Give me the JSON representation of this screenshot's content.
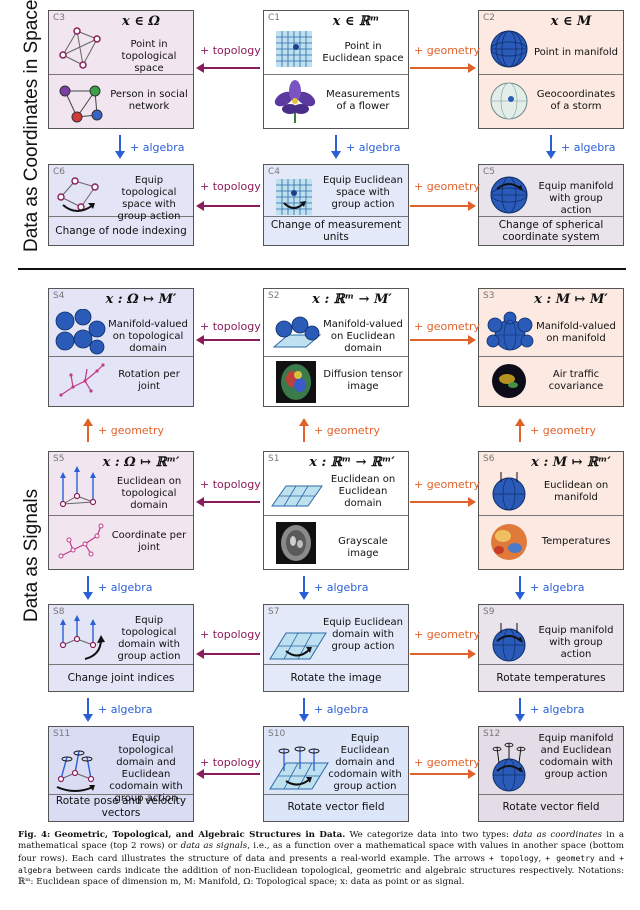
{
  "section_labels": {
    "coordinates": "Data as Coordinates in Space",
    "signals": "Data as Signals"
  },
  "arrow_labels": {
    "topology": "+ topology",
    "geometry": "+ geometry",
    "algebra": "+ algebra"
  },
  "cards": {
    "C3": {
      "id": "C3",
      "math": "x ∈ Ω",
      "desc": "Point in topological space",
      "example": "Person in social network"
    },
    "C1": {
      "id": "C1",
      "math": "x ∈ ℝᵐ",
      "desc": "Point in Euclidean space",
      "example": "Measurements of a flower"
    },
    "C2": {
      "id": "C2",
      "math": "x ∈ M",
      "desc": "Point in manifold",
      "example": "Geocoordinates of a storm"
    },
    "C6": {
      "id": "C6",
      "desc": "Equip topological space with group action",
      "bottom": "Change of node indexing"
    },
    "C4": {
      "id": "C4",
      "desc": "Equip Euclidean space with group action",
      "bottom": "Change of measurement units"
    },
    "C5": {
      "id": "C5",
      "desc": "Equip manifold with group action",
      "bottom": "Change of spherical coordinate system"
    },
    "S4": {
      "id": "S4",
      "math": "x : Ω ↦ M′",
      "desc": "Manifold-valued on topological domain",
      "example": "Rotation per joint"
    },
    "S2": {
      "id": "S2",
      "math": "x : ℝᵐ → M′",
      "desc": "Manifold-valued on Euclidean domain",
      "example": "Diffusion tensor image"
    },
    "S3": {
      "id": "S3",
      "math": "x : M ↦ M′",
      "desc": "Manifold-valued on manifold",
      "example": "Air traffic covariance"
    },
    "S5": {
      "id": "S5",
      "math": "x : Ω ↦ ℝᵐ′",
      "desc": "Euclidean on topological domain",
      "example": "Coordinate per joint"
    },
    "S1": {
      "id": "S1",
      "math": "x : ℝᵐ → ℝᵐ′",
      "desc": "Euclidean on Euclidean domain",
      "example": "Grayscale image"
    },
    "S6": {
      "id": "S6",
      "math": "x : M ↦ ℝᵐ′",
      "desc": "Euclidean on manifold",
      "example": "Temperatures"
    },
    "S8": {
      "id": "S8",
      "desc": "Equip topological domain with group action",
      "bottom": "Change joint indices"
    },
    "S7": {
      "id": "S7",
      "desc": "Equip Euclidean domain with group action",
      "bottom": "Rotate the image"
    },
    "S9": {
      "id": "S9",
      "desc": "Equip manifold with group action",
      "bottom": "Rotate temperatures"
    },
    "S11": {
      "id": "S11",
      "desc": "Equip topological domain and Euclidean codomain with group action",
      "bottom": "Rotate pose and velocity vectors"
    },
    "S10": {
      "id": "S10",
      "desc": "Equip Euclidean domain and codomain with group action",
      "bottom": "Rotate vector field"
    },
    "S12": {
      "id": "S12",
      "desc": "Equip manifold and Euclidean codomain with group action",
      "bottom": "Rotate vector field"
    }
  },
  "colors": {
    "topology": "#8a1d5a",
    "geometry": "#e0622a",
    "algebra": "#2b5fd6",
    "topo_bg": "#f1e6ef",
    "eucl_bg": "#ffffff",
    "mani_bg": "#fbe9e2",
    "alg_topo_bg": "#e3e4f5",
    "alg_eucl_bg": "#e3e9f8",
    "alg_mani_bg": "#e9e3ec",
    "globe": "#2a5bb8"
  },
  "caption": {
    "fig": "Fig. 4:",
    "title": "Geometric, Topological, and Algebraic Structures in Data.",
    "p1": "We categorize data into two types:",
    "t1": "data as coordinates",
    "p2": "in a mathematical space (top 2 rows) or",
    "t2": "data as signals",
    "p3": ", i.e., as a function over a mathematical space with values in another space (bottom four rows). Each card illustrates the structure of data and presents a real-world example. The arrows",
    "m1": "+ topology",
    "p4": ",",
    "m2": "+ geometry",
    "p5": "and",
    "m3": "+ algebra",
    "p6": "between cards indicate the addition of non-Euclidean topological, geometric and algebraic structures respectively. Notations: ℝᵐ: Euclidean space of dimension m, M: Manifold, Ω: Topological space; x: data as point or as signal."
  }
}
